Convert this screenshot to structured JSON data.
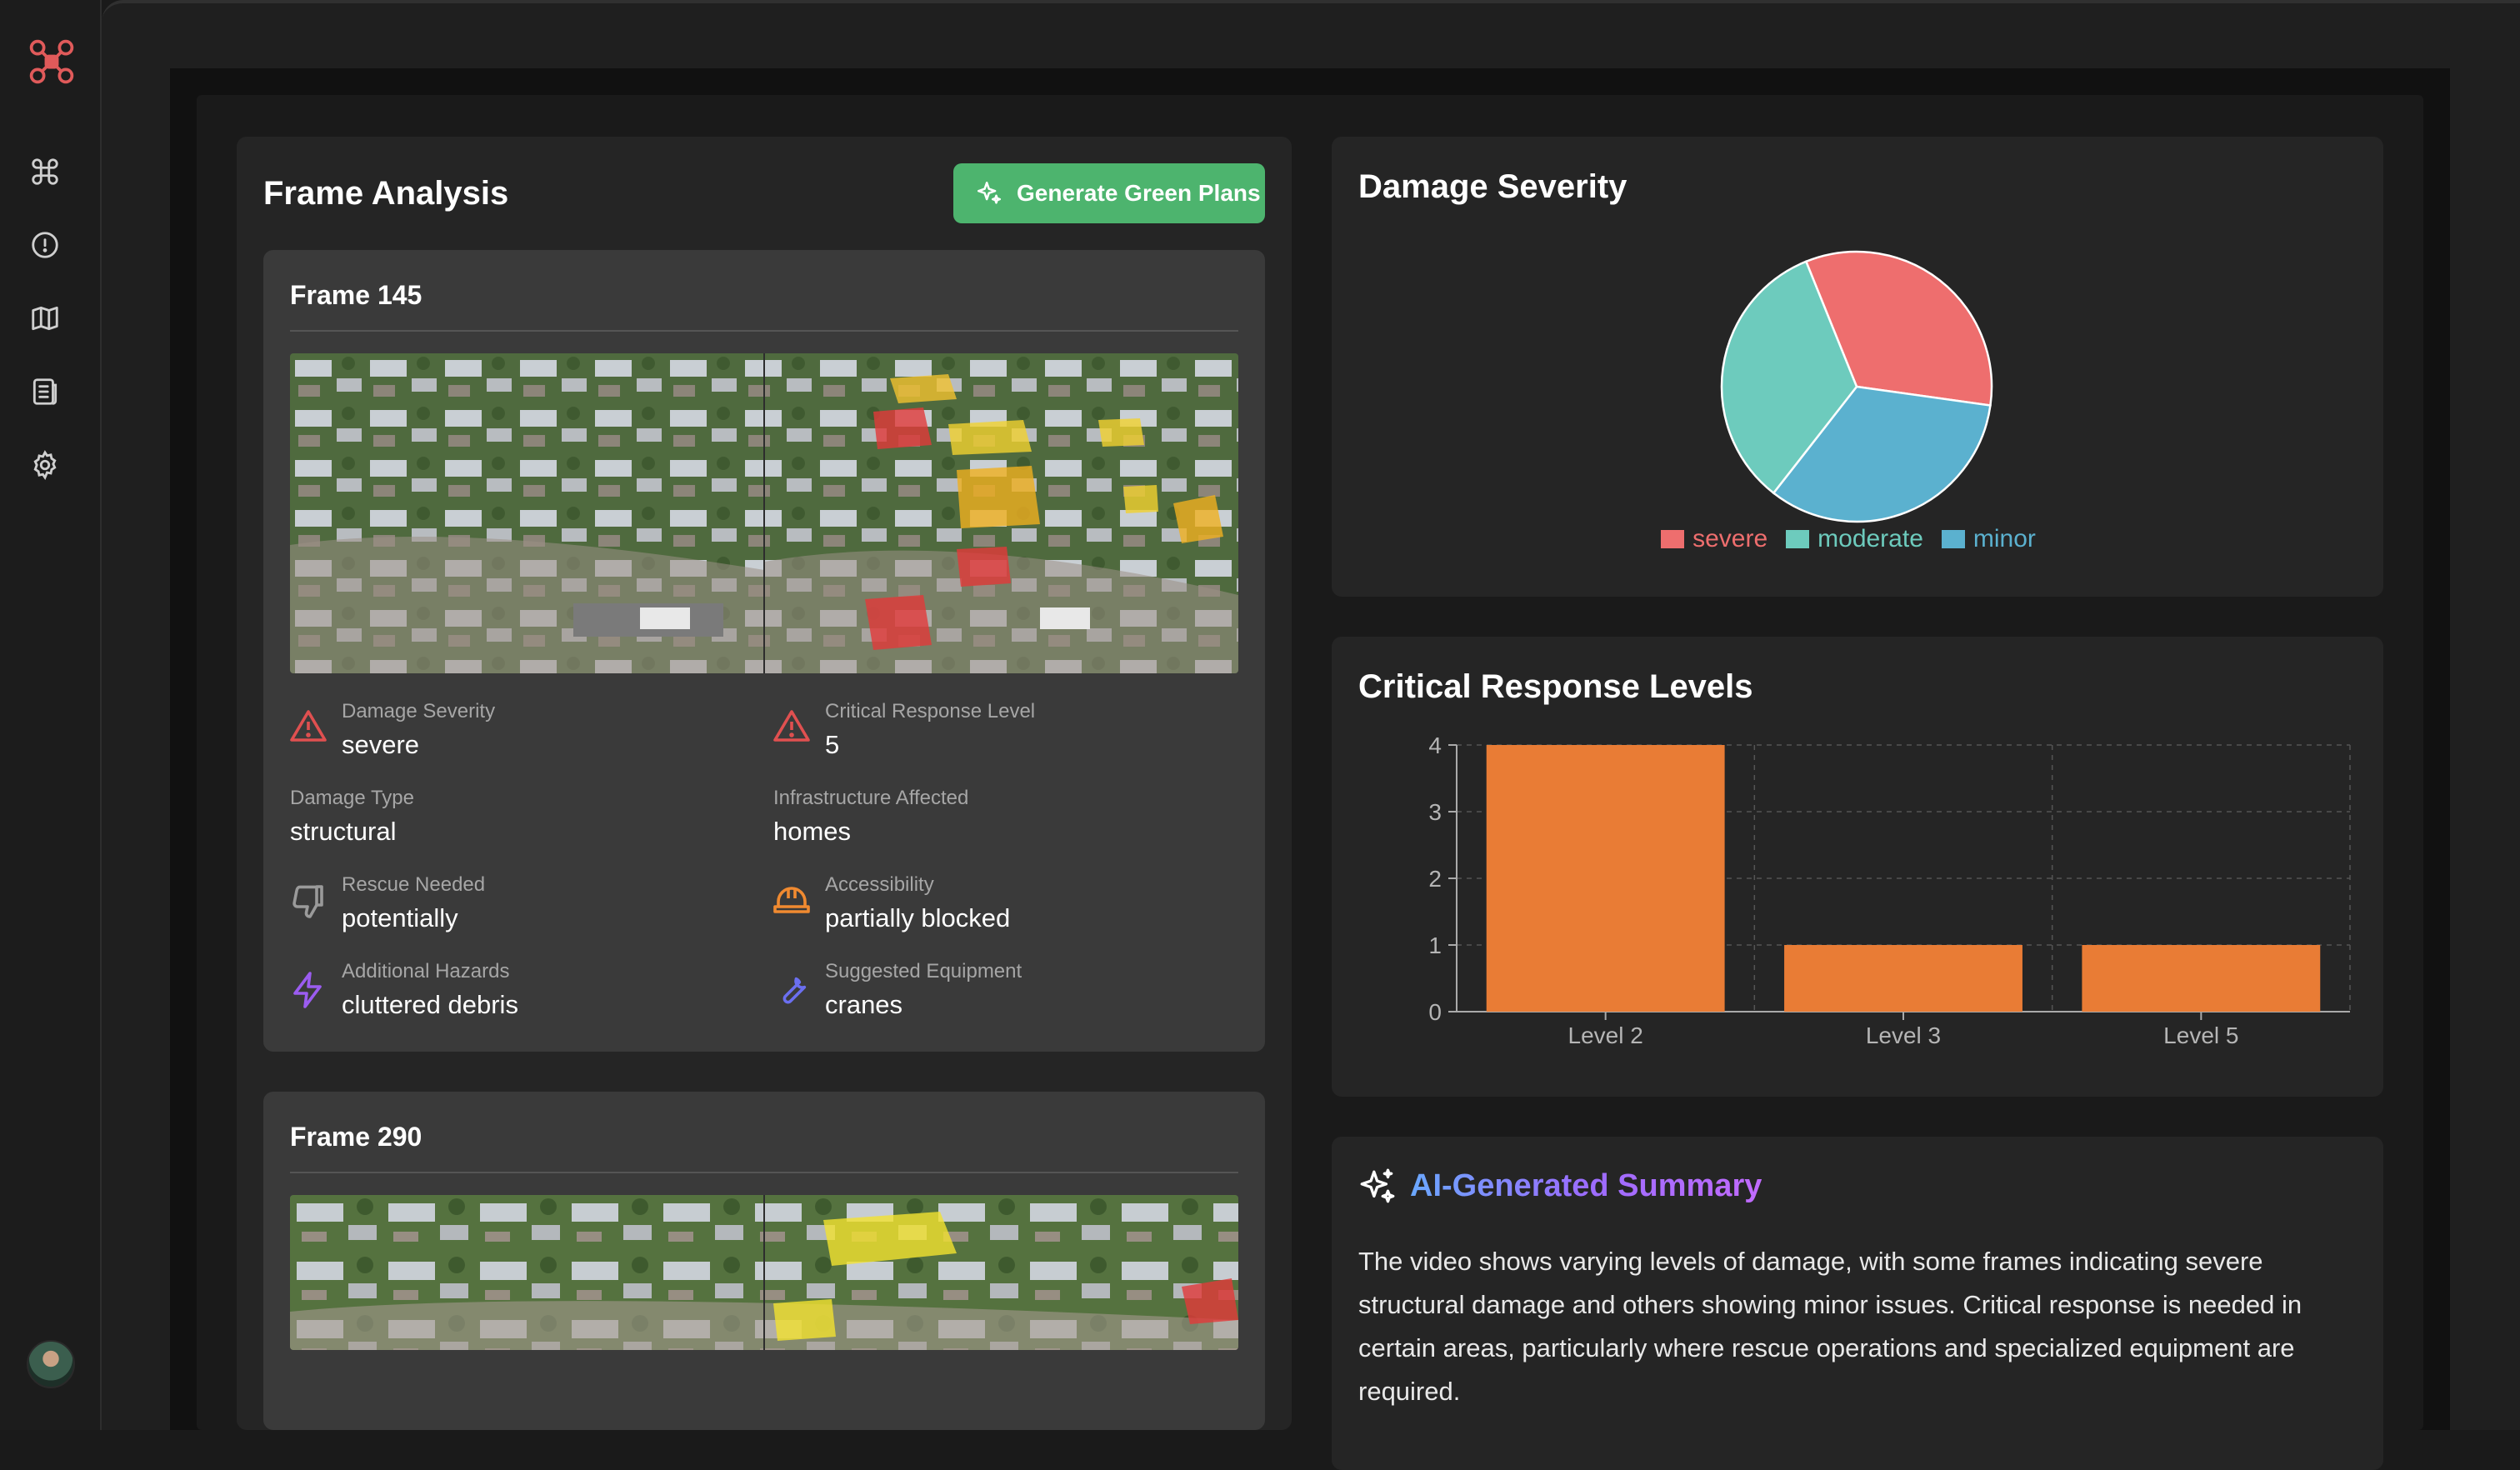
{
  "frame_analysis": {
    "title": "Frame Analysis",
    "generate_button": "Generate Green Plans",
    "frames": [
      {
        "title": "Frame 145",
        "fields": {
          "damage_severity": {
            "label": "Damage Severity",
            "value": "severe"
          },
          "critical_response": {
            "label": "Critical Response Level",
            "value": "5"
          },
          "damage_type": {
            "label": "Damage Type",
            "value": "structural"
          },
          "infrastructure": {
            "label": "Infrastructure Affected",
            "value": "homes"
          },
          "rescue": {
            "label": "Rescue Needed",
            "value": "potentially"
          },
          "accessibility": {
            "label": "Accessibility",
            "value": "partially blocked"
          },
          "hazards": {
            "label": "Additional Hazards",
            "value": "cluttered debris"
          },
          "equipment": {
            "label": "Suggested Equipment",
            "value": "cranes"
          }
        }
      },
      {
        "title": "Frame 290"
      }
    ]
  },
  "damage_severity_card": {
    "title": "Damage Severity",
    "chart_data": {
      "type": "pie",
      "labels": [
        "severe",
        "moderate",
        "minor"
      ],
      "values": [
        1,
        1,
        1
      ],
      "colors": [
        "#ee6e6e",
        "#6dcbbd",
        "#5bb1cf"
      ],
      "legend": "bottom"
    }
  },
  "critical_levels_card": {
    "title": "Critical Response Levels",
    "chart_data": {
      "type": "bar",
      "categories": [
        "Level 2",
        "Level 3",
        "Level 5"
      ],
      "values": [
        4,
        1,
        1
      ],
      "ylim": [
        0,
        4
      ],
      "yticks": [
        0,
        1,
        2,
        3,
        4
      ],
      "grid": true,
      "color": "#e97c35"
    }
  },
  "summary": {
    "title": "AI-Generated Summary",
    "text": "The video shows varying levels of damage, with some frames indicating severe structural damage and others showing minor issues. Critical response is needed in certain areas, particularly where rescue operations and specialized equipment are required."
  },
  "sidebar": {
    "icons": [
      "drone-logo-icon",
      "command-icon",
      "alert-circle-icon",
      "map-icon",
      "document-icon",
      "gear-icon"
    ]
  }
}
